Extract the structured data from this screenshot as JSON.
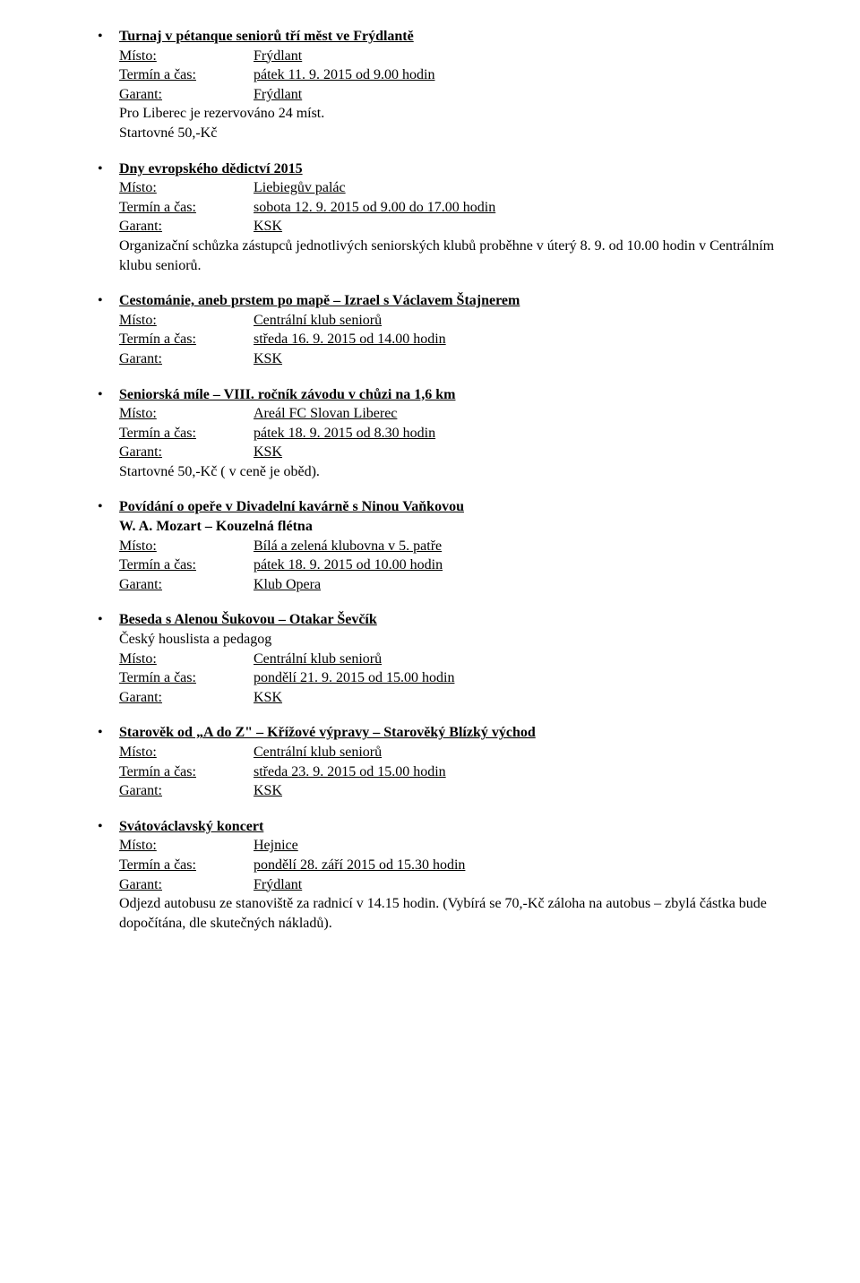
{
  "labels": {
    "misto": "Místo:",
    "termin": "Termín a čas:",
    "garant": "Garant:"
  },
  "events": [
    {
      "title": "Turnaj v pétanque seniorů tří měst ve Frýdlantě",
      "misto": "Frýdlant",
      "termin": "pátek 11. 9. 2015 od 9.00 hodin",
      "garant": "Frýdlant",
      "notes": [
        "Pro Liberec je rezervováno 24 míst.",
        "Startovné 50,-Kč"
      ]
    },
    {
      "title": "Dny evropského dědictví 2015",
      "misto": "Liebiegův palác",
      "termin": "sobota 12. 9. 2015 od 9.00 do 17.00 hodin",
      "garant": "KSK",
      "notes": [
        "Organizační schůzka zástupců jednotlivých seniorských klubů proběhne v úterý 8. 9. od 10.00 hodin v Centrálním klubu seniorů."
      ]
    },
    {
      "title": "Cestománie, aneb prstem po mapě – Izrael s Václavem Štajnerem",
      "misto": "Centrální klub seniorů",
      "termin": "středa 16. 9. 2015 od 14.00 hodin",
      "garant": "KSK"
    },
    {
      "title": "Seniorská míle – VIII. ročník závodu v chůzi na 1,6 km",
      "misto": "Areál FC Slovan Liberec",
      "termin": "pátek 18. 9. 2015 od 8.30 hodin",
      "garant": "KSK",
      "notes": [
        "Startovné 50,-Kč ( v ceně je oběd)."
      ]
    },
    {
      "title": "Povídání o opeře v Divadelní kavárně s Ninou Vaňkovou",
      "subtitle": "W. A. Mozart – Kouzelná flétna",
      "misto": "Bílá a zelená klubovna v 5. patře",
      "termin": "pátek 18. 9. 2015 od 10.00 hodin",
      "garant": "Klub Opera"
    },
    {
      "title": "Beseda s Alenou Šukovou – Otakar Ševčík",
      "pretext": "Český houslista a pedagog",
      "misto": "Centrální klub seniorů",
      "termin": "pondělí 21. 9. 2015 od 15.00 hodin",
      "garant": "KSK"
    },
    {
      "title": "Starověk od „A do Z\" – Křížové výpravy – Starověký Blízký východ",
      "misto": "Centrální klub seniorů",
      "termin": "středa 23. 9. 2015 od 15.00 hodin",
      "garant": "KSK"
    },
    {
      "title": "Svátováclavský koncert",
      "misto": "Hejnice",
      "termin": "pondělí 28. září 2015 od 15.30 hodin",
      "garant": "Frýdlant",
      "notes": [
        "Odjezd autobusu ze stanoviště za radnicí v 14.15 hodin. (Vybírá se 70,-Kč záloha na autobus – zbylá částka bude dopočítána, dle skutečných nákladů)."
      ]
    }
  ]
}
